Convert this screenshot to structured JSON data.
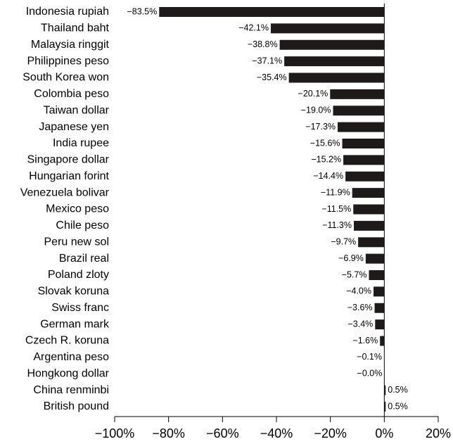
{
  "chart_data": {
    "type": "bar",
    "orientation": "horizontal",
    "color": "#1f1a1a",
    "categories": [
      "Indonesia rupiah",
      "Thailand baht",
      "Malaysia ringgit",
      "Philippines peso",
      "South Korea won",
      "Colombia peso",
      "Taiwan dollar",
      "Japanese yen",
      "India rupee",
      "Singapore dollar",
      "Hungarian forint",
      "Venezuela bolivar",
      "Mexico peso",
      "Chile peso",
      "Peru new sol",
      "Brazil real",
      "Poland zloty",
      "Slovak koruna",
      "Swiss franc",
      "German mark",
      "Czech R. koruna",
      "Argentina peso",
      "Hongkong dollar",
      "China renminbi",
      "British pound"
    ],
    "values": [
      -83.5,
      -42.1,
      -38.8,
      -37.1,
      -35.4,
      -20.1,
      -19.0,
      -17.3,
      -15.6,
      -15.2,
      -14.4,
      -11.9,
      -11.5,
      -11.3,
      -9.7,
      -6.9,
      -5.7,
      -4.0,
      -3.6,
      -3.4,
      -1.6,
      -0.1,
      0,
      0.5,
      0.5
    ],
    "value_labels": [
      "−83.5%",
      "−42.1%",
      "−38.8%",
      "−37.1%",
      "−35.4%",
      "−20.1%",
      "−19.0%",
      "−17.3%",
      "−15.6%",
      "−15.2%",
      "−14.4%",
      "−11.9%",
      "−11.5%",
      "−11.3%",
      "−9.7%",
      "−6.9%",
      "−5.7%",
      "−4.0%",
      "−3.6%",
      "−3.4%",
      "−1.6%",
      "−0.1%",
      "−0.0%",
      "0.5%",
      "0.5%"
    ],
    "xlim": [
      -100,
      20
    ],
    "xticks": [
      {
        "value": -100,
        "label": "−100%"
      },
      {
        "value": -80,
        "label": "−80%"
      },
      {
        "value": -60,
        "label": "−60%"
      },
      {
        "value": -40,
        "label": "−40%"
      },
      {
        "value": -20,
        "label": "−20%"
      },
      {
        "value": 0,
        "label": "0%"
      },
      {
        "value": 20,
        "label": "20%"
      }
    ]
  }
}
